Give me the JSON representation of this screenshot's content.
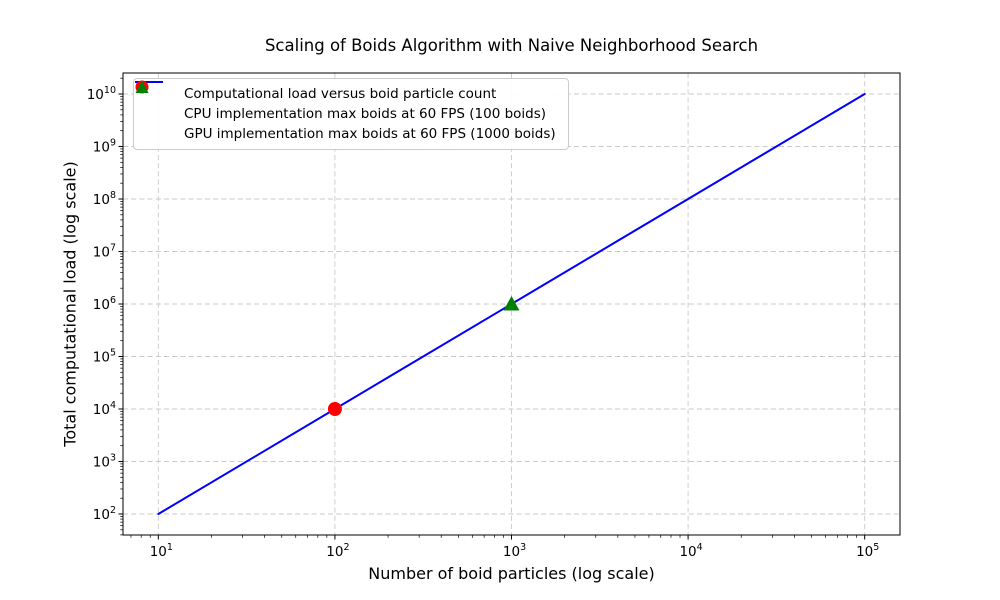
{
  "chart_data": {
    "type": "line",
    "title": "Scaling of Boids Algorithm with Naive Neighborhood Search",
    "xlabel": "Number of boid particles (log scale)",
    "ylabel": "Total computational load (log scale)",
    "x_scale": "log",
    "y_scale": "log",
    "grid": true,
    "grid_style": "dashed",
    "grid_color": "#c9c9c9",
    "xlim_log10": [
      0.8,
      5.2
    ],
    "ylim_log10": [
      1.6,
      10.4
    ],
    "x_major_ticks": [
      10,
      100,
      1000,
      10000,
      100000
    ],
    "y_major_ticks": [
      100,
      1000,
      10000,
      100000,
      1000000,
      10000000,
      100000000,
      1000000000,
      10000000000
    ],
    "legend_position": "upper-left",
    "series": [
      {
        "name": "Computational load versus boid particle count",
        "type": "line",
        "color": "#0000ff",
        "x": [
          10,
          100,
          1000,
          10000,
          100000
        ],
        "y": [
          100,
          10000,
          1000000,
          100000000,
          10000000000
        ]
      },
      {
        "name": "CPU implementation max boids at 60 FPS (100 boids)",
        "type": "scatter",
        "marker": "circle",
        "color": "#ff0000",
        "x": [
          100
        ],
        "y": [
          10000
        ]
      },
      {
        "name": "GPU implementation max boids at 60 FPS (1000 boids)",
        "type": "scatter",
        "marker": "triangle",
        "color": "#008000",
        "x": [
          1000
        ],
        "y": [
          1000000
        ]
      }
    ]
  }
}
